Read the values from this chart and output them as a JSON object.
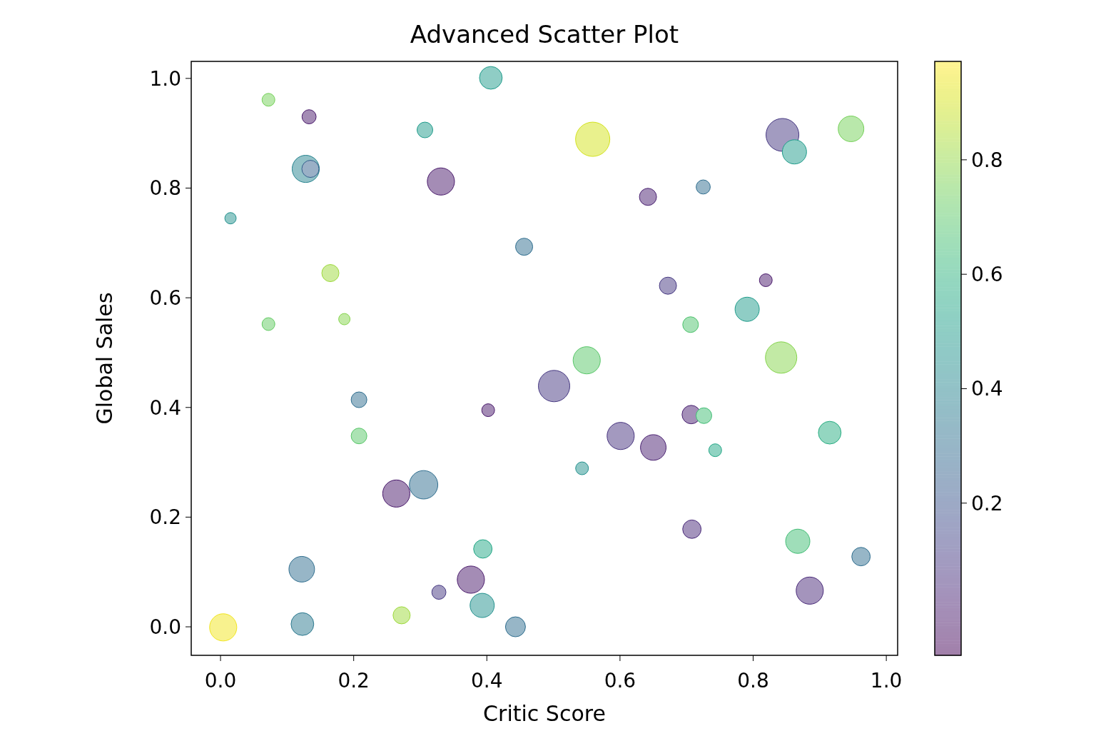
{
  "chart_data": {
    "type": "bubble",
    "title": "Advanced Scatter Plot",
    "xlabel": "Critic Score",
    "ylabel": "Global Sales",
    "x": [
      0.072,
      0.133,
      0.406,
      0.307,
      0.559,
      0.844,
      0.947,
      0.862,
      0.128,
      0.135,
      0.331,
      0.642,
      0.725,
      0.015,
      0.456,
      0.165,
      0.672,
      0.819,
      0.072,
      0.186,
      0.791,
      0.706,
      0.55,
      0.842,
      0.501,
      0.208,
      0.402,
      0.707,
      0.726,
      0.208,
      0.601,
      0.915,
      0.65,
      0.743,
      0.543,
      0.264,
      0.305,
      0.708,
      0.867,
      0.394,
      0.962,
      0.122,
      0.376,
      0.328,
      0.885,
      0.393,
      0.272,
      0.004,
      0.123,
      0.443
    ],
    "values": [
      0.961,
      0.93,
      1.001,
      0.906,
      0.889,
      0.897,
      0.908,
      0.866,
      0.835,
      0.835,
      0.812,
      0.784,
      0.802,
      0.745,
      0.693,
      0.645,
      0.622,
      0.632,
      0.552,
      0.561,
      0.579,
      0.551,
      0.486,
      0.491,
      0.439,
      0.414,
      0.395,
      0.387,
      0.385,
      0.348,
      0.348,
      0.354,
      0.327,
      0.322,
      0.289,
      0.243,
      0.259,
      0.178,
      0.156,
      0.142,
      0.128,
      0.105,
      0.086,
      0.063,
      0.066,
      0.039,
      0.021,
      -0.001,
      0.005,
      0.0
    ],
    "sizes": [
      0.14,
      0.17,
      0.44,
      0.21,
      1,
      0.92,
      0.56,
      0.5,
      0.63,
      0.25,
      0.63,
      0.25,
      0.17,
      0.11,
      0.25,
      0.25,
      0.25,
      0.14,
      0.14,
      0.11,
      0.5,
      0.21,
      0.63,
      0.84,
      0.84,
      0.21,
      0.14,
      0.29,
      0.21,
      0.21,
      0.63,
      0.44,
      0.56,
      0.14,
      0.14,
      0.63,
      0.69,
      0.29,
      0.5,
      0.29,
      0.29,
      0.56,
      0.63,
      0.17,
      0.63,
      0.5,
      0.25,
      0.63,
      0.44,
      0.34
    ],
    "cvalues": [
      0.75,
      0.0,
      0.5,
      0.5,
      0.9,
      0.1,
      0.75,
      0.5,
      0.4,
      0.25,
      0.0,
      0.02,
      0.3,
      0.45,
      0.3,
      0.82,
      0.1,
      0.0,
      0.72,
      0.78,
      0.5,
      0.68,
      0.7,
      0.78,
      0.1,
      0.3,
      0.0,
      0.02,
      0.65,
      0.7,
      0.08,
      0.58,
      0.02,
      0.55,
      0.45,
      0.0,
      0.3,
      0.05,
      0.65,
      0.55,
      0.3,
      0.3,
      0.0,
      0.1,
      0.05,
      0.45,
      0.82,
      0.95,
      0.35,
      0.3
    ],
    "xlim": [
      -0.044,
      1.017
    ],
    "ylim": [
      -0.052,
      1.031
    ],
    "xticks": [
      {
        "value": 0,
        "label": "0.0"
      },
      {
        "value": 0.2,
        "label": "0.2"
      },
      {
        "value": 0.4,
        "label": "0.4"
      },
      {
        "value": 0.6,
        "label": "0.6"
      },
      {
        "value": 0.8,
        "label": "0.8"
      },
      {
        "value": 1,
        "label": "1.0"
      }
    ],
    "yticks": [
      {
        "value": 0,
        "label": "0.0"
      },
      {
        "value": 0.2,
        "label": "0.2"
      },
      {
        "value": 0.4,
        "label": "0.4"
      },
      {
        "value": 0.6,
        "label": "0.6"
      },
      {
        "value": 0.8,
        "label": "0.8"
      },
      {
        "value": 1,
        "label": "1.0"
      }
    ],
    "clim": [
      -0.066,
      0.972
    ],
    "cticks": [
      0.2,
      0.4,
      0.6,
      0.8
    ]
  }
}
